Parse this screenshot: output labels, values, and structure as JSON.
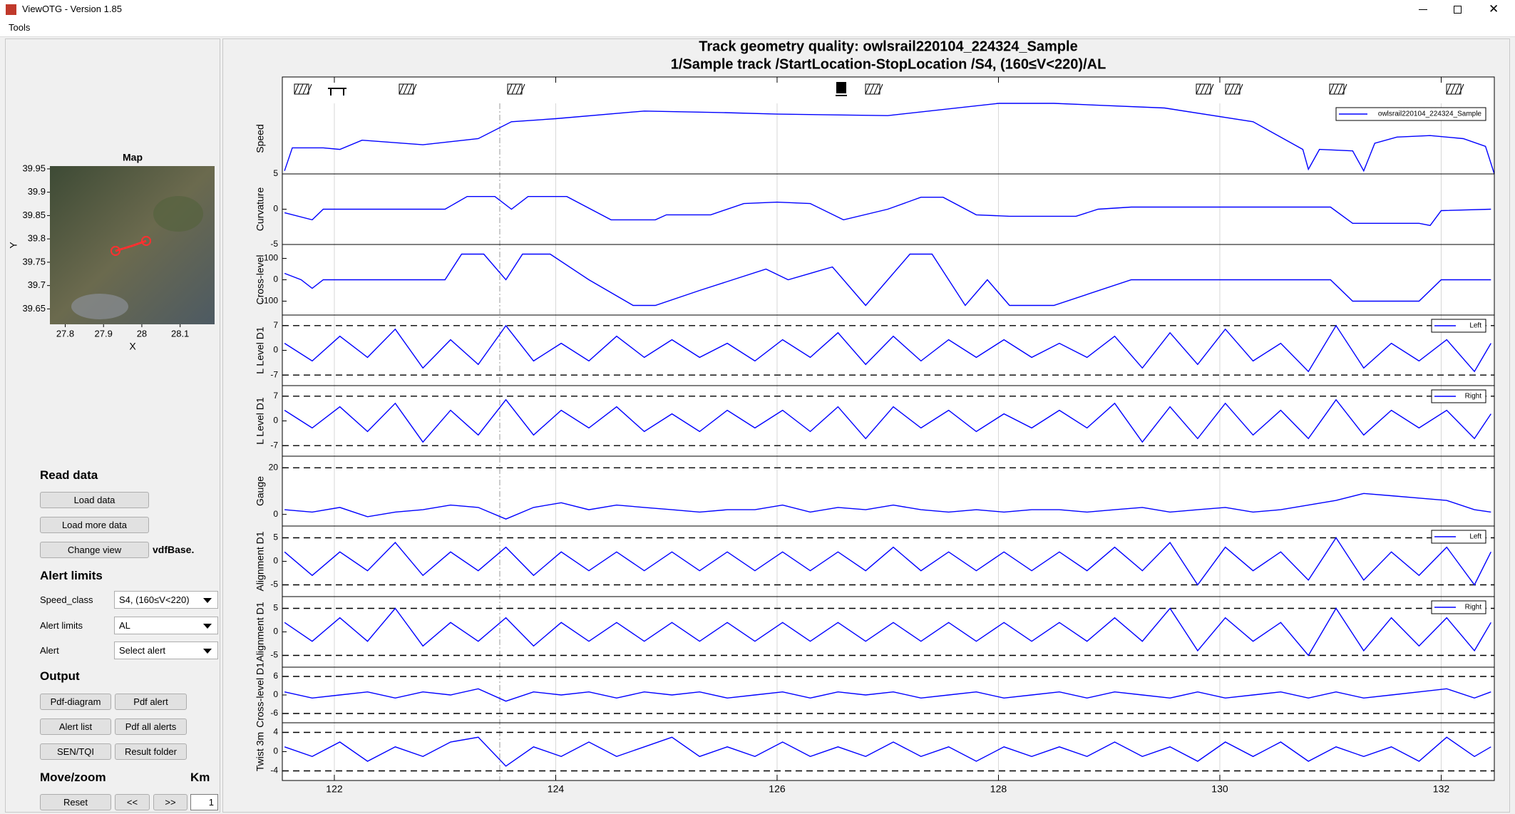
{
  "window": {
    "title": "ViewOTG - Version 1.85",
    "menu": [
      "Tools"
    ]
  },
  "map": {
    "title": "Map",
    "xlabel": "X",
    "ylabel": "Y",
    "xlim": [
      27.76,
      28.19
    ],
    "ylim": [
      39.617,
      39.956
    ],
    "xticks": [
      27.8,
      27.9,
      28,
      28.1
    ],
    "yticks": [
      39.95,
      39.9,
      39.85,
      39.8,
      39.75,
      39.7,
      39.65
    ]
  },
  "controls": {
    "read_data": {
      "heading": "Read data",
      "buttons": [
        "Load data",
        "Load more data",
        "Change view"
      ],
      "view_file": "vdfBase."
    },
    "alert_limits": {
      "heading": "Alert limits",
      "fields": [
        {
          "label": "Speed_class",
          "value": "S4, (160≤V<220)"
        },
        {
          "label": "Alert limits",
          "value": "AL"
        },
        {
          "label": "Alert",
          "value": "Select alert"
        }
      ]
    },
    "output": {
      "heading": "Output",
      "buttons": [
        "Pdf-diagram",
        "Pdf alert",
        "Alert list",
        "Pdf all alerts",
        "SEN/TQI",
        "Result folder"
      ]
    },
    "move_zoom": {
      "heading": "Move/zoom",
      "unit": "Km",
      "buttons": [
        "Reset",
        "<<",
        ">>"
      ],
      "step": 1
    }
  },
  "plot": {
    "type": "line",
    "title": "Track geometry quality: owlsrail220104_224324_Sample",
    "subtitle": "1/Sample  track /StartLocation-StopLocation /S4, (160≤V<220)/AL",
    "color": "#0000ff",
    "grid": true,
    "xlim": [
      121.53,
      132.48
    ],
    "xticks": [
      122,
      124,
      126,
      128,
      130,
      132
    ],
    "panels": [
      {
        "ylabel": "Speed",
        "legend": "owlsrail220104_224324_Sample",
        "ylim": [
          0,
          230
        ],
        "x": [
          121.55,
          121.62,
          121.9,
          122.05,
          122.25,
          122.8,
          123.3,
          123.6,
          124.0,
          124.8,
          125.5,
          126.0,
          127.0,
          128.0,
          128.5,
          129.5,
          130.3,
          130.75,
          130.8,
          130.9,
          131.2,
          131.3,
          131.4,
          131.6,
          131.9,
          132.2,
          132.4,
          132.48
        ],
        "values": [
          10,
          85,
          85,
          80,
          110,
          95,
          115,
          170,
          180,
          205,
          200,
          195,
          190,
          230,
          230,
          215,
          170,
          80,
          15,
          80,
          75,
          10,
          100,
          120,
          125,
          115,
          90,
          0
        ]
      },
      {
        "ylabel": "Curvature",
        "ylim": [
          -5,
          5
        ],
        "yticks": [
          5,
          0,
          -5
        ],
        "x": [
          121.55,
          121.8,
          121.9,
          122.0,
          123.0,
          123.2,
          123.45,
          123.6,
          123.75,
          124.1,
          124.5,
          124.9,
          125.0,
          125.4,
          125.7,
          126.0,
          126.3,
          126.6,
          127.0,
          127.3,
          127.5,
          127.8,
          128.1,
          128.7,
          128.9,
          129.2,
          130.0,
          131.0,
          131.2,
          131.4,
          131.8,
          131.9,
          132.0,
          132.45
        ],
        "values": [
          -0.5,
          -1.5,
          0,
          0,
          0,
          1.8,
          1.8,
          0,
          1.8,
          1.8,
          -1.5,
          -1.5,
          -0.8,
          -0.8,
          0.8,
          1,
          0.8,
          -1.5,
          0,
          1.7,
          1.7,
          -0.8,
          -1,
          -1,
          0,
          0.3,
          0.3,
          0.3,
          -2,
          -2,
          -2,
          -2.3,
          -0.2,
          0
        ]
      },
      {
        "ylabel": "Cross-level",
        "ylim": [
          -165,
          165
        ],
        "yticks": [
          100,
          0,
          -100
        ],
        "x": [
          121.55,
          121.7,
          121.8,
          121.9,
          122.0,
          123.0,
          123.15,
          123.35,
          123.55,
          123.7,
          123.95,
          124.3,
          124.7,
          124.9,
          125.3,
          125.9,
          126.1,
          126.5,
          126.8,
          127.2,
          127.4,
          127.7,
          127.9,
          128.1,
          128.5,
          129.2,
          130.0,
          131.0,
          131.2,
          131.8,
          132.0,
          132.45
        ],
        "values": [
          30,
          0,
          -40,
          0,
          0,
          0,
          120,
          120,
          0,
          120,
          120,
          0,
          -120,
          -120,
          -50,
          50,
          0,
          60,
          -120,
          120,
          120,
          -120,
          0,
          -120,
          -120,
          0,
          0,
          0,
          -100,
          -100,
          0,
          0
        ]
      },
      {
        "ylabel": "L Level D1",
        "legend": "Left",
        "ylim": [
          -10,
          10
        ],
        "yticks": [
          7,
          0,
          -7
        ],
        "dashed": true,
        "x": [
          121.55,
          121.8,
          122.05,
          122.3,
          122.55,
          122.8,
          123.05,
          123.3,
          123.55,
          123.8,
          124.05,
          124.3,
          124.55,
          124.8,
          125.05,
          125.3,
          125.55,
          125.8,
          126.05,
          126.3,
          126.55,
          126.8,
          127.05,
          127.3,
          127.55,
          127.8,
          128.05,
          128.3,
          128.55,
          128.8,
          129.05,
          129.3,
          129.55,
          129.8,
          130.05,
          130.3,
          130.55,
          130.8,
          131.05,
          131.3,
          131.55,
          131.8,
          132.05,
          132.3,
          132.45
        ],
        "values": [
          2,
          -3,
          4,
          -2,
          6,
          -5,
          3,
          -4,
          7,
          -3,
          2,
          -3,
          4,
          -2,
          3,
          -2,
          2,
          -3,
          3,
          -2,
          5,
          -4,
          4,
          -3,
          3,
          -2,
          3,
          -2,
          2,
          -2,
          4,
          -5,
          5,
          -4,
          6,
          -3,
          2,
          -6,
          7,
          -5,
          2,
          -3,
          3,
          -6,
          2
        ]
      },
      {
        "ylabel": "L Level D1",
        "legend": "Right",
        "ylim": [
          -10,
          10
        ],
        "yticks": [
          7,
          0,
          -7
        ],
        "dashed": true,
        "x": [
          121.55,
          121.8,
          122.05,
          122.3,
          122.55,
          122.8,
          123.05,
          123.3,
          123.55,
          123.8,
          124.05,
          124.3,
          124.55,
          124.8,
          125.05,
          125.3,
          125.55,
          125.8,
          126.05,
          126.3,
          126.55,
          126.8,
          127.05,
          127.3,
          127.55,
          127.8,
          128.05,
          128.3,
          128.55,
          128.8,
          129.05,
          129.3,
          129.55,
          129.8,
          130.05,
          130.3,
          130.55,
          130.8,
          131.05,
          131.3,
          131.55,
          131.8,
          132.05,
          132.3,
          132.45
        ],
        "values": [
          3,
          -2,
          4,
          -3,
          5,
          -6,
          3,
          -4,
          6,
          -4,
          3,
          -2,
          4,
          -3,
          2,
          -3,
          3,
          -2,
          3,
          -3,
          4,
          -5,
          4,
          -2,
          3,
          -3,
          2,
          -2,
          3,
          -2,
          5,
          -6,
          4,
          -5,
          5,
          -4,
          3,
          -5,
          6,
          -4,
          3,
          -2,
          3,
          -5,
          2
        ]
      },
      {
        "ylabel": "Gauge",
        "ylim": [
          -5,
          25
        ],
        "yticks": [
          20,
          0
        ],
        "dashed": true,
        "x": [
          121.55,
          121.8,
          122.05,
          122.3,
          122.55,
          122.8,
          123.05,
          123.3,
          123.55,
          123.8,
          124.05,
          124.3,
          124.55,
          124.8,
          125.05,
          125.3,
          125.55,
          125.8,
          126.05,
          126.3,
          126.55,
          126.8,
          127.05,
          127.3,
          127.55,
          127.8,
          128.05,
          128.3,
          128.55,
          128.8,
          129.05,
          129.3,
          129.55,
          129.8,
          130.05,
          130.3,
          130.55,
          130.8,
          131.05,
          131.3,
          131.55,
          131.8,
          132.05,
          132.3,
          132.45
        ],
        "values": [
          2,
          1,
          3,
          -1,
          1,
          2,
          4,
          3,
          -2,
          3,
          5,
          2,
          4,
          3,
          2,
          1,
          2,
          2,
          4,
          1,
          3,
          2,
          4,
          2,
          1,
          2,
          1,
          2,
          2,
          1,
          2,
          3,
          1,
          2,
          3,
          1,
          2,
          4,
          6,
          9,
          8,
          7,
          6,
          2,
          1
        ]
      },
      {
        "ylabel": "Alignment D1",
        "legend": "Left",
        "ylim": [
          -7.5,
          7.5
        ],
        "yticks": [
          5,
          0,
          -5
        ],
        "dashed": true,
        "x": [
          121.55,
          121.8,
          122.05,
          122.3,
          122.55,
          122.8,
          123.05,
          123.3,
          123.55,
          123.8,
          124.05,
          124.3,
          124.55,
          124.8,
          125.05,
          125.3,
          125.55,
          125.8,
          126.05,
          126.3,
          126.55,
          126.8,
          127.05,
          127.3,
          127.55,
          127.8,
          128.05,
          128.3,
          128.55,
          128.8,
          129.05,
          129.3,
          129.55,
          129.8,
          130.05,
          130.3,
          130.55,
          130.8,
          131.05,
          131.3,
          131.55,
          131.8,
          132.05,
          132.3,
          132.45
        ],
        "values": [
          2,
          -3,
          2,
          -2,
          4,
          -3,
          2,
          -2,
          3,
          -3,
          2,
          -2,
          2,
          -2,
          2,
          -2,
          2,
          -2,
          2,
          -2,
          2,
          -2,
          3,
          -2,
          2,
          -2,
          2,
          -2,
          2,
          -2,
          3,
          -2,
          4,
          -5,
          3,
          -2,
          2,
          -4,
          5,
          -4,
          2,
          -3,
          3,
          -5,
          2
        ]
      },
      {
        "ylabel": "Alignment D1",
        "legend": "Right",
        "ylim": [
          -7.5,
          7.5
        ],
        "yticks": [
          5,
          0,
          -5
        ],
        "dashed": true,
        "x": [
          121.55,
          121.8,
          122.05,
          122.3,
          122.55,
          122.8,
          123.05,
          123.3,
          123.55,
          123.8,
          124.05,
          124.3,
          124.55,
          124.8,
          125.05,
          125.3,
          125.55,
          125.8,
          126.05,
          126.3,
          126.55,
          126.8,
          127.05,
          127.3,
          127.55,
          127.8,
          128.05,
          128.3,
          128.55,
          128.8,
          129.05,
          129.3,
          129.55,
          129.8,
          130.05,
          130.3,
          130.55,
          130.8,
          131.05,
          131.3,
          131.55,
          131.8,
          132.05,
          132.3,
          132.45
        ],
        "values": [
          2,
          -2,
          3,
          -2,
          5,
          -3,
          2,
          -2,
          3,
          -3,
          2,
          -2,
          2,
          -2,
          2,
          -2,
          2,
          -2,
          2,
          -2,
          2,
          -2,
          2,
          -2,
          2,
          -2,
          2,
          -2,
          2,
          -2,
          3,
          -2,
          5,
          -4,
          3,
          -2,
          2,
          -5,
          5,
          -4,
          3,
          -3,
          3,
          -4,
          2
        ]
      },
      {
        "ylabel": "Cross-level D1",
        "ylim": [
          -9,
          9
        ],
        "yticks": [
          6,
          0,
          -6
        ],
        "dashed": true,
        "x": [
          121.55,
          121.8,
          122.05,
          122.3,
          122.55,
          122.8,
          123.05,
          123.3,
          123.55,
          123.8,
          124.05,
          124.3,
          124.55,
          124.8,
          125.05,
          125.3,
          125.55,
          125.8,
          126.05,
          126.3,
          126.55,
          126.8,
          127.05,
          127.3,
          127.55,
          127.8,
          128.05,
          128.3,
          128.55,
          128.8,
          129.05,
          129.3,
          129.55,
          129.8,
          130.05,
          130.3,
          130.55,
          130.8,
          131.05,
          131.3,
          131.55,
          131.8,
          132.05,
          132.3,
          132.45
        ],
        "values": [
          1,
          -1,
          0,
          1,
          -1,
          1,
          0,
          2,
          -2,
          1,
          0,
          1,
          -1,
          1,
          0,
          1,
          -1,
          0,
          1,
          -1,
          1,
          0,
          1,
          -1,
          0,
          1,
          -1,
          0,
          1,
          -1,
          1,
          0,
          -1,
          1,
          -1,
          0,
          1,
          -1,
          1,
          -1,
          0,
          1,
          2,
          -1,
          1
        ]
      },
      {
        "ylabel": "Twist 3m",
        "ylim": [
          -6,
          6
        ],
        "yticks": [
          4,
          0,
          -4
        ],
        "dashed": true,
        "x": [
          121.55,
          121.8,
          122.05,
          122.3,
          122.55,
          122.8,
          123.05,
          123.3,
          123.55,
          123.8,
          124.05,
          124.3,
          124.55,
          124.8,
          125.05,
          125.3,
          125.55,
          125.8,
          126.05,
          126.3,
          126.55,
          126.8,
          127.05,
          127.3,
          127.55,
          127.8,
          128.05,
          128.3,
          128.55,
          128.8,
          129.05,
          129.3,
          129.55,
          129.8,
          130.05,
          130.3,
          130.55,
          130.8,
          131.05,
          131.3,
          131.55,
          131.8,
          132.05,
          132.3,
          132.45
        ],
        "values": [
          1,
          -1,
          2,
          -2,
          1,
          -1,
          2,
          3,
          -3,
          1,
          -1,
          2,
          -1,
          1,
          3,
          -1,
          1,
          -1,
          2,
          -1,
          1,
          -1,
          2,
          -1,
          1,
          -2,
          1,
          -1,
          1,
          -1,
          2,
          -1,
          1,
          -2,
          2,
          -1,
          2,
          -2,
          1,
          -1,
          1,
          -2,
          3,
          -1,
          1
        ]
      }
    ]
  }
}
